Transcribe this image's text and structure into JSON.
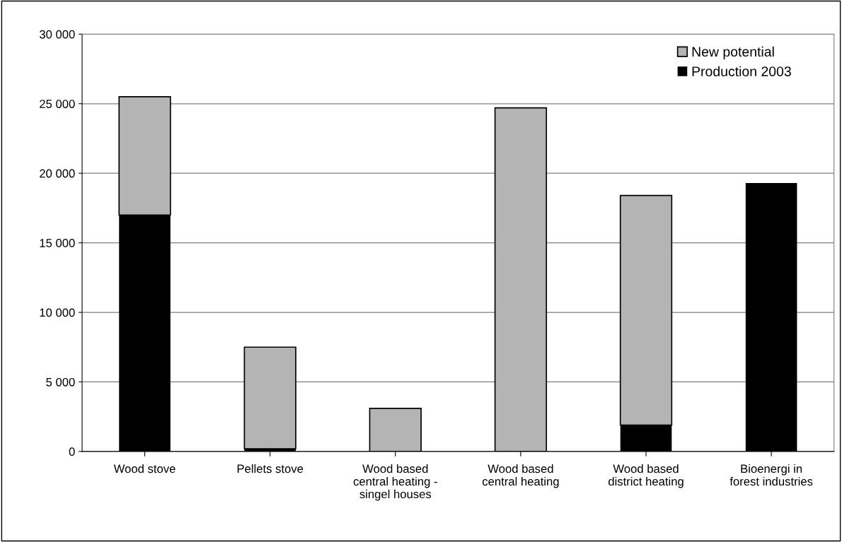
{
  "chart_data": {
    "type": "bar",
    "stacked": true,
    "categories": [
      "Wood stove",
      "Pellets stove",
      "Wood based\ncentral heating -\nsingel houses",
      "Wood based\ncentral heating",
      "Wood based\ndistrict heating",
      "Bioenergi in\nforest industries"
    ],
    "series": [
      {
        "name": "Production 2003",
        "color": "#000000",
        "values": [
          17000,
          200,
          0,
          0,
          1900,
          19300
        ]
      },
      {
        "name": "New potential",
        "color": "#b4b4b4",
        "values": [
          8500,
          7300,
          3100,
          24700,
          16500,
          0
        ]
      }
    ],
    "ylim": [
      0,
      30000
    ],
    "yticks": [
      {
        "value": 0,
        "label": "0"
      },
      {
        "value": 5000,
        "label": "5 000"
      },
      {
        "value": 10000,
        "label": "10 000"
      },
      {
        "value": 15000,
        "label": "15 000"
      },
      {
        "value": 20000,
        "label": "20 000"
      },
      {
        "value": 25000,
        "label": "25 000"
      },
      {
        "value": 30000,
        "label": "30 000"
      }
    ],
    "grid": "y",
    "legend": "top right"
  }
}
